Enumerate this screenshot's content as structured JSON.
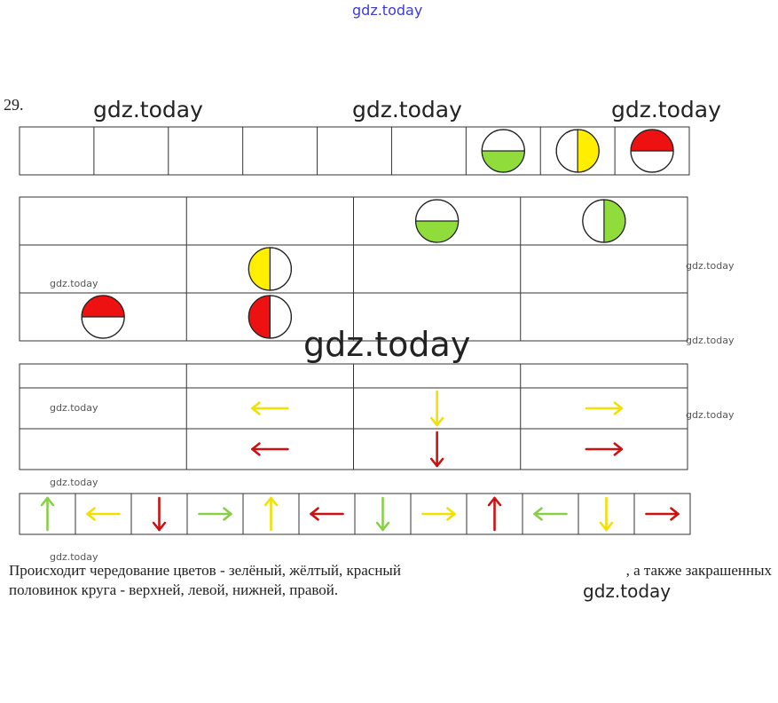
{
  "watermarks": {
    "top": "gdz.today",
    "row1a": "gdz.today",
    "row1b": "gdz.today",
    "row1c": "gdz.today",
    "center": "gdz.today",
    "small1": "gdz.today",
    "small2": "gdz.today",
    "small3": "gdz.today",
    "small4": "gdz.today",
    "small5": "gdz.today",
    "small6": "gdz.today",
    "small7": "gdz.today",
    "bottom": "gdz.today"
  },
  "task_number": "29.",
  "colors": {
    "green": "#8fdc3a",
    "yellow": "#ffee00",
    "red": "#ee1111",
    "pink": "#f07070",
    "grid": "#333333",
    "arrow_red": "#cc1111",
    "arrow_yellow": "#f2e000",
    "arrow_green": "#88d048"
  },
  "row1_circles": [
    "green-bottom",
    "yellow-right",
    "red-top"
  ],
  "table1": [
    [
      "",
      "",
      "green-bottom",
      "green-right"
    ],
    [
      "",
      "yellow-left",
      "",
      ""
    ],
    [
      "red-top",
      "red-left",
      "",
      ""
    ]
  ],
  "table2": [
    [
      "",
      "",
      "",
      ""
    ],
    [
      "",
      "yellow-left",
      "yellow-down",
      "yellow-right"
    ],
    [
      "",
      "red-left",
      "red-down",
      "red-right"
    ]
  ],
  "arrow_strip": [
    "green-up",
    "yellow-left",
    "red-down",
    "green-right",
    "yellow-up",
    "red-left",
    "green-down",
    "yellow-right",
    "red-up",
    "green-left",
    "yellow-down",
    "red-right"
  ],
  "caption": {
    "line1_start": "Происходит чередование цветов -  зелёный, жёлтый, красный",
    "line1_end": ", а также закрашенных",
    "line2": "половинок круга - верхней, левой, нижней, правой."
  }
}
